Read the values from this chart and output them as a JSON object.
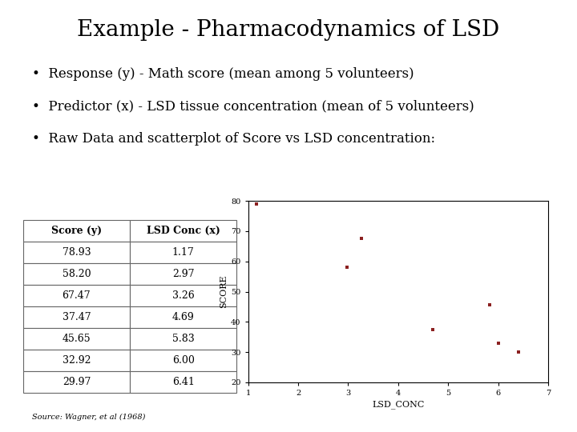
{
  "title": "Example - Pharmacodynamics of LSD",
  "bullet1_pre": "Response (",
  "bullet1_var": "y",
  "bullet1_post": ") - Math score (mean among 5 volunteers)",
  "bullet2_pre": "Predictor (",
  "bullet2_var": "x",
  "bullet2_post": ") - LSD tissue concentration (mean of 5 volunteers)",
  "bullet3": "Raw Data and scatterplot of Score vs LSD concentration:",
  "table_headers": [
    "Score (y)",
    "LSD Conc (x)"
  ],
  "table_data": [
    [
      78.93,
      1.17
    ],
    [
      58.2,
      2.97
    ],
    [
      67.47,
      3.26
    ],
    [
      37.47,
      4.69
    ],
    [
      45.65,
      5.83
    ],
    [
      32.92,
      6.0
    ],
    [
      29.97,
      6.41
    ]
  ],
  "scatter_x": [
    1.17,
    2.97,
    3.26,
    4.69,
    5.83,
    6.0,
    6.41
  ],
  "scatter_y": [
    78.93,
    58.2,
    67.47,
    37.47,
    45.65,
    32.92,
    29.97
  ],
  "scatter_color": "#8B2020",
  "scatter_marker": "s",
  "scatter_markersize": 3,
  "xlabel": "LSD_CONC",
  "ylabel": "SCORE",
  "xlim": [
    1,
    7
  ],
  "ylim": [
    20,
    80
  ],
  "xticks": [
    1,
    2,
    3,
    4,
    5,
    6,
    7
  ],
  "yticks": [
    20,
    30,
    40,
    50,
    60,
    70,
    80
  ],
  "source": "Source: Wagner, et al (1968)",
  "bg_color": "#ffffff",
  "title_fontsize": 20,
  "bullet_fontsize": 12,
  "table_fontsize": 9,
  "axis_label_fontsize": 8,
  "tick_fontsize": 7
}
